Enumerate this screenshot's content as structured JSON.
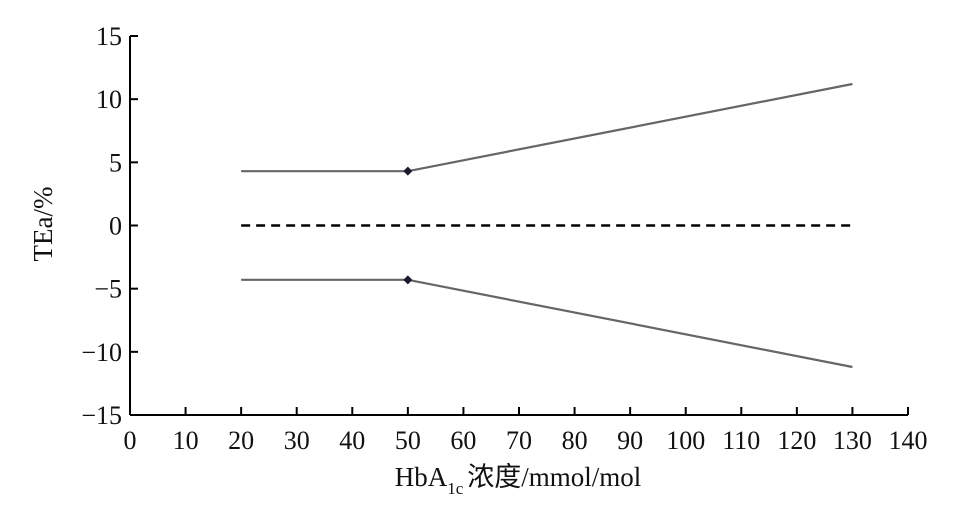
{
  "chart_data": {
    "type": "line",
    "xlabel": {
      "main": "HbA",
      "subscript": "1c",
      "rest": "浓度/mmol/mol"
    },
    "ylabel": "TEa/%",
    "xlim": [
      0,
      140
    ],
    "ylim": [
      -15,
      15
    ],
    "x_ticks": [
      0,
      10,
      20,
      30,
      40,
      50,
      60,
      70,
      80,
      90,
      100,
      110,
      120,
      130,
      140
    ],
    "y_ticks": [
      15,
      10,
      5,
      0,
      -5,
      -10,
      -15
    ],
    "y_tick_labels": [
      "15",
      "10",
      "5",
      "0",
      "−5",
      "−10",
      "−15"
    ],
    "grid": false,
    "legend": "none",
    "series": [
      {
        "x": [
          20,
          50,
          130
        ],
        "y": [
          4.3,
          4.3,
          11.2
        ],
        "style": "solid",
        "color": "#666666",
        "markers_at_x": [
          50
        ]
      },
      {
        "x": [
          20,
          50,
          130
        ],
        "y": [
          -4.3,
          -4.3,
          -11.2
        ],
        "style": "solid",
        "color": "#666666",
        "markers_at_x": [
          50
        ]
      },
      {
        "x": [
          20,
          130
        ],
        "y": [
          0,
          0
        ],
        "style": "dashed",
        "color": "#000000",
        "markers_at_x": []
      }
    ],
    "marker_color": "#1a1a2e"
  }
}
